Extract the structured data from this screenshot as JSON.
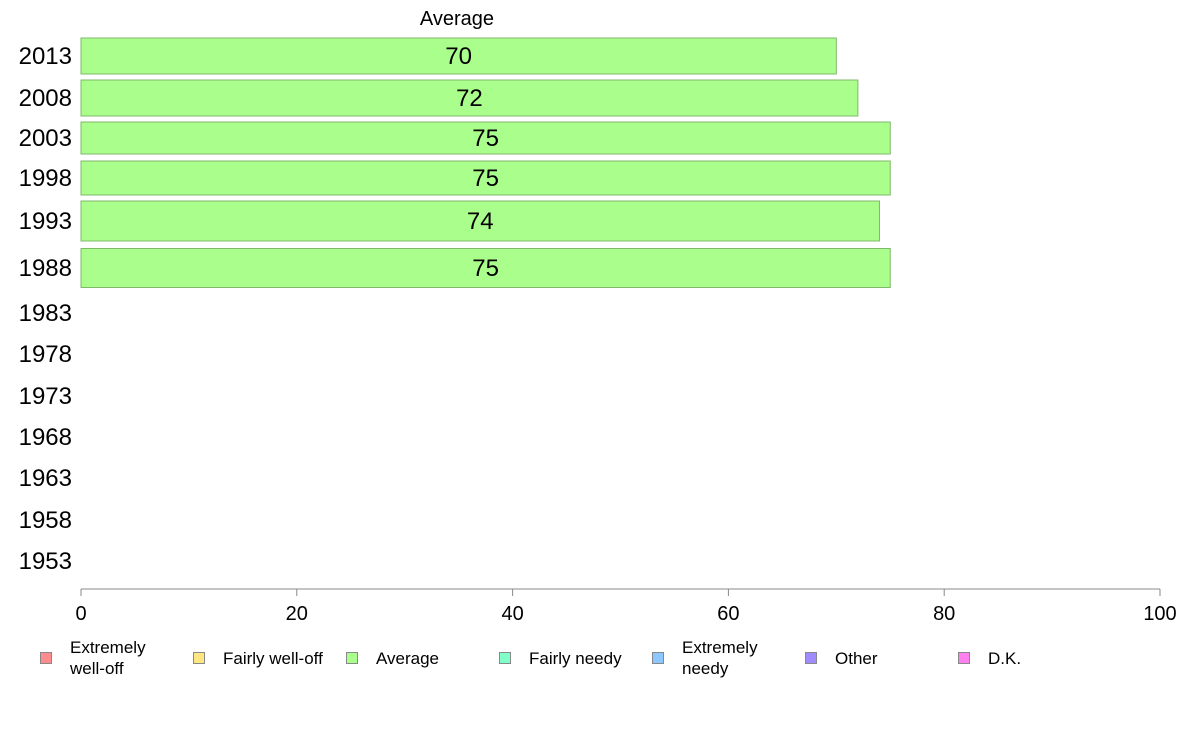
{
  "chart_data": {
    "type": "bar",
    "orientation": "horizontal",
    "title": "Average",
    "categories": [
      "2013",
      "2008",
      "2003",
      "1998",
      "1993",
      "1988",
      "1983",
      "1978",
      "1973",
      "1968",
      "1963",
      "1958",
      "1953"
    ],
    "series": [
      {
        "name": "Average",
        "values": [
          70,
          72,
          75,
          75,
          74,
          75,
          null,
          null,
          null,
          null,
          null,
          null,
          null
        ],
        "color": "#aaff8c"
      }
    ],
    "xlim": [
      0,
      100
    ],
    "xticks": [
      "0",
      "20",
      "40",
      "60",
      "80",
      "100"
    ],
    "grid": false,
    "legend_position": "bottom",
    "legend": [
      {
        "label": "Extremely\nwell-off",
        "color": "#ff8c8c"
      },
      {
        "label": "Fairly well-off",
        "color": "#ffe680"
      },
      {
        "label": "Average",
        "color": "#aaff8c"
      },
      {
        "label": "Fairly needy",
        "color": "#80ffc8"
      },
      {
        "label": "Extremely\nneedy",
        "color": "#8cc8ff"
      },
      {
        "label": "Other",
        "color": "#a08cff"
      },
      {
        "label": "D.K.",
        "color": "#ff80ee"
      }
    ]
  }
}
